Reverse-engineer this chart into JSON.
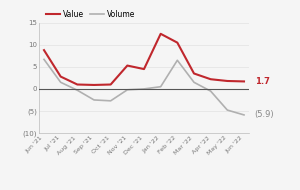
{
  "x_labels": [
    "Jun '21",
    "Jul '21",
    "Aug '21",
    "Sep '21",
    "Oct '21",
    "Nov '21",
    "Dec '21",
    "Jan '22",
    "Feb '22",
    "Mar '22",
    "Apr '22",
    "May '22",
    "Jun '22"
  ],
  "value_data": [
    8.8,
    2.8,
    1.0,
    0.9,
    1.0,
    5.3,
    4.5,
    12.5,
    10.5,
    3.5,
    2.2,
    1.8,
    1.7
  ],
  "volume_data": [
    6.7,
    1.5,
    -0.3,
    -2.5,
    -2.7,
    -0.2,
    0.0,
    0.5,
    6.5,
    1.5,
    -0.5,
    -4.8,
    -5.9
  ],
  "value_color": "#c0272d",
  "volume_color": "#b0b0b0",
  "ylim": [
    -10,
    15
  ],
  "yticks": [
    -10,
    -5,
    0,
    5,
    10,
    15
  ],
  "ytick_labels": [
    "(10)",
    "(5)",
    "0",
    "5",
    "10",
    "15"
  ],
  "zero_line_color": "#555555",
  "background_color": "#f5f5f5",
  "legend_value": "Value",
  "legend_volume": "Volume",
  "end_label_value": "1.7",
  "end_label_volume": "(5.9)",
  "end_label_value_color": "#c0272d",
  "end_label_volume_color": "#888888",
  "spine_color": "#bbbbbb",
  "tick_color": "#777777"
}
